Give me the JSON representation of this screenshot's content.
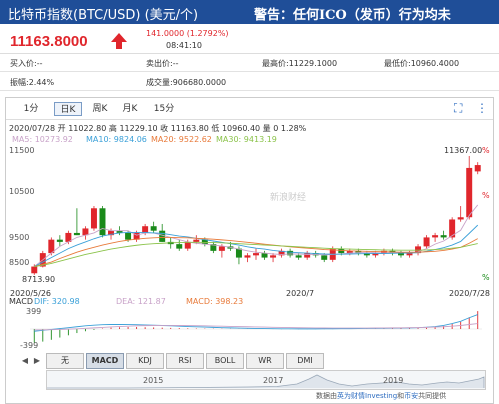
{
  "header": {
    "title": "比特币指数(BTC/USD) (美元/个)",
    "warning": "警告：任何ICO（发币）行为均未"
  },
  "quote": {
    "price": "11163.8000",
    "change": "141.0000 (1.2792%)",
    "time": "08:41:10"
  },
  "stats": {
    "bid": "买入价:--",
    "ask": "卖出价:--",
    "high": "最高价:11229.1000",
    "low": "最低价:10960.4000",
    "amplitude": "振幅:2.44%",
    "volume": "成交量:906680.0000"
  },
  "tabs": [
    "1分",
    "日K",
    "周K",
    "月K",
    "15分"
  ],
  "active_tab": "日K",
  "ohlc_line": "2020/07/28 开 11022.80 高 11229.10 收 11163.80 低 10960.40 量 0 1.28%",
  "ma": {
    "ma5": "MA5: 10273.92",
    "ma10": "MA10: 9824.06",
    "ma20": "MA20: 9522.62",
    "ma30": "MA30: 9413.19"
  },
  "colors": {
    "up": "#e0262c",
    "down": "#1a8a1a",
    "ma5": "#c8a2c8",
    "ma10": "#3aa0d8",
    "ma20": "#e87a3a",
    "ma30": "#8bc34a",
    "header": "#1f4e98"
  },
  "axis": {
    "y_ticks": [
      "11500",
      "10500",
      "9500",
      "8500"
    ],
    "x_ticks": [
      "2020/5/26",
      "2020/7",
      "2020/7/28"
    ],
    "max_label": "11367.00",
    "min_label": "8713.90",
    "pct_high": "%",
    "pct_mid": "%",
    "pct_low": "%",
    "watermark": "新浪财经"
  },
  "macd": {
    "label": "MACD",
    "dif": "DIF: 320.98",
    "dea": "DEA: 121.87",
    "macd": "MACD: 398.23",
    "y_top": "399",
    "y_bottom": "-399"
  },
  "indicators": [
    "无",
    "MACD",
    "KDJ",
    "RSI",
    "BOLL",
    "WR",
    "DMI"
  ],
  "active_indicator": "MACD",
  "timeline_years": [
    "2015",
    "2017",
    "2019"
  ],
  "footer": {
    "prefix": "数据由",
    "provider": "英为财情Investing",
    "middle": "和",
    "provider2": "币安",
    "suffix": "共同提供"
  },
  "chart_data": {
    "type": "candlestick",
    "x_range": [
      "2020/5/26",
      "2020/7/28"
    ],
    "ylim": [
      8500,
      11500
    ],
    "candles": [
      {
        "o": 8750,
        "h": 8950,
        "l": 8714,
        "c": 8900
      },
      {
        "o": 8900,
        "h": 9250,
        "l": 8880,
        "c": 9200
      },
      {
        "o": 9200,
        "h": 9550,
        "l": 9150,
        "c": 9500
      },
      {
        "o": 9500,
        "h": 9600,
        "l": 9350,
        "c": 9450
      },
      {
        "o": 9450,
        "h": 9700,
        "l": 9400,
        "c": 9650
      },
      {
        "o": 9650,
        "h": 10200,
        "l": 9600,
        "c": 9600
      },
      {
        "o": 9600,
        "h": 9800,
        "l": 9500,
        "c": 9750
      },
      {
        "o": 9750,
        "h": 10250,
        "l": 9700,
        "c": 10200
      },
      {
        "o": 10200,
        "h": 10250,
        "l": 9550,
        "c": 9600
      },
      {
        "o": 9600,
        "h": 9750,
        "l": 9500,
        "c": 9700
      },
      {
        "o": 9700,
        "h": 9800,
        "l": 9600,
        "c": 9650
      },
      {
        "o": 9650,
        "h": 9700,
        "l": 9450,
        "c": 9500
      },
      {
        "o": 9500,
        "h": 9700,
        "l": 9450,
        "c": 9650
      },
      {
        "o": 9650,
        "h": 9850,
        "l": 9600,
        "c": 9800
      },
      {
        "o": 9800,
        "h": 9900,
        "l": 9650,
        "c": 9700
      },
      {
        "o": 9700,
        "h": 9850,
        "l": 9450,
        "c": 9450
      },
      {
        "o": 9450,
        "h": 9550,
        "l": 9300,
        "c": 9400
      },
      {
        "o": 9400,
        "h": 9500,
        "l": 9250,
        "c": 9300
      },
      {
        "o": 9300,
        "h": 9500,
        "l": 9250,
        "c": 9450
      },
      {
        "o": 9450,
        "h": 9600,
        "l": 9400,
        "c": 9500
      },
      {
        "o": 9500,
        "h": 9550,
        "l": 9350,
        "c": 9400
      },
      {
        "o": 9400,
        "h": 9450,
        "l": 9200,
        "c": 9250
      },
      {
        "o": 9250,
        "h": 9400,
        "l": 9100,
        "c": 9350
      },
      {
        "o": 9350,
        "h": 9450,
        "l": 9250,
        "c": 9300
      },
      {
        "o": 9300,
        "h": 9350,
        "l": 8950,
        "c": 9100
      },
      {
        "o": 9100,
        "h": 9200,
        "l": 9000,
        "c": 9150
      },
      {
        "o": 9150,
        "h": 9300,
        "l": 9050,
        "c": 9200
      },
      {
        "o": 9200,
        "h": 9250,
        "l": 9050,
        "c": 9100
      },
      {
        "o": 9100,
        "h": 9200,
        "l": 9000,
        "c": 9150
      },
      {
        "o": 9150,
        "h": 9300,
        "l": 9100,
        "c": 9250
      },
      {
        "o": 9250,
        "h": 9300,
        "l": 9100,
        "c": 9150
      },
      {
        "o": 9150,
        "h": 9200,
        "l": 9050,
        "c": 9100
      },
      {
        "o": 9100,
        "h": 9250,
        "l": 9050,
        "c": 9200
      },
      {
        "o": 9200,
        "h": 9250,
        "l": 9100,
        "c": 9150
      },
      {
        "o": 9150,
        "h": 9200,
        "l": 9000,
        "c": 9050
      },
      {
        "o": 9050,
        "h": 9350,
        "l": 9000,
        "c": 9300
      },
      {
        "o": 9300,
        "h": 9350,
        "l": 9150,
        "c": 9200
      },
      {
        "o": 9200,
        "h": 9300,
        "l": 9150,
        "c": 9250
      },
      {
        "o": 9250,
        "h": 9300,
        "l": 9150,
        "c": 9200
      },
      {
        "o": 9200,
        "h": 9250,
        "l": 9100,
        "c": 9150
      },
      {
        "o": 9150,
        "h": 9250,
        "l": 9100,
        "c": 9200
      },
      {
        "o": 9200,
        "h": 9300,
        "l": 9150,
        "c": 9250
      },
      {
        "o": 9250,
        "h": 9300,
        "l": 9150,
        "c": 9200
      },
      {
        "o": 9200,
        "h": 9250,
        "l": 9100,
        "c": 9150
      },
      {
        "o": 9150,
        "h": 9250,
        "l": 9100,
        "c": 9200
      },
      {
        "o": 9200,
        "h": 9400,
        "l": 9150,
        "c": 9350
      },
      {
        "o": 9350,
        "h": 9600,
        "l": 9300,
        "c": 9550
      },
      {
        "o": 9550,
        "h": 9650,
        "l": 9450,
        "c": 9600
      },
      {
        "o": 9600,
        "h": 9700,
        "l": 9500,
        "c": 9550
      },
      {
        "o": 9550,
        "h": 10000,
        "l": 9500,
        "c": 9950
      },
      {
        "o": 9950,
        "h": 10250,
        "l": 9900,
        "c": 10000
      },
      {
        "o": 10000,
        "h": 11367,
        "l": 9950,
        "c": 11100
      },
      {
        "o": 11022.8,
        "h": 11229.1,
        "l": 10960.4,
        "c": 11163.8
      }
    ],
    "ma": {
      "MA5": [
        8900,
        9050,
        9200,
        9350,
        9450,
        9550,
        9600,
        9650,
        9750,
        9700,
        9700,
        9700,
        9600,
        9650,
        9650,
        9600,
        9550,
        9500,
        9450,
        9420,
        9400,
        9380,
        9360,
        9330,
        9290,
        9250,
        9220,
        9200,
        9180,
        9170,
        9180,
        9180,
        9170,
        9170,
        9160,
        9170,
        9180,
        9200,
        9210,
        9220,
        9210,
        9200,
        9210,
        9210,
        9200,
        9230,
        9300,
        9400,
        9470,
        9590,
        9710,
        10040,
        10274
      ],
      "MA10": [
        8900,
        9000,
        9100,
        9200,
        9300,
        9380,
        9450,
        9520,
        9580,
        9620,
        9650,
        9660,
        9660,
        9660,
        9650,
        9640,
        9610,
        9580,
        9560,
        9530,
        9500,
        9470,
        9440,
        9410,
        9380,
        9340,
        9310,
        9290,
        9260,
        9240,
        9220,
        9210,
        9200,
        9190,
        9180,
        9175,
        9175,
        9180,
        9185,
        9190,
        9190,
        9190,
        9195,
        9200,
        9200,
        9210,
        9240,
        9280,
        9320,
        9380,
        9460,
        9640,
        9824
      ],
      "MA20": [
        8900,
        8950,
        9000,
        9080,
        9150,
        9220,
        9280,
        9330,
        9380,
        9420,
        9460,
        9490,
        9510,
        9530,
        9540,
        9550,
        9550,
        9545,
        9540,
        9530,
        9520,
        9510,
        9495,
        9480,
        9460,
        9440,
        9420,
        9400,
        9380,
        9360,
        9340,
        9325,
        9310,
        9295,
        9280,
        9270,
        9260,
        9250,
        9245,
        9240,
        9235,
        9230,
        9225,
        9220,
        9220,
        9220,
        9230,
        9240,
        9260,
        9290,
        9330,
        9420,
        9523
      ],
      "MA30": [
        8900,
        8930,
        8970,
        9020,
        9070,
        9120,
        9170,
        9210,
        9250,
        9290,
        9320,
        9350,
        9375,
        9395,
        9410,
        9420,
        9430,
        9435,
        9440,
        9440,
        9438,
        9435,
        9430,
        9420,
        9410,
        9400,
        9390,
        9380,
        9370,
        9360,
        9350,
        9340,
        9330,
        9320,
        9310,
        9300,
        9295,
        9290,
        9285,
        9280,
        9275,
        9270,
        9268,
        9265,
        9265,
        9265,
        9270,
        9280,
        9290,
        9310,
        9330,
        9370,
        9413
      ]
    },
    "macd_hist": [
      -300,
      -280,
      -240,
      -190,
      -140,
      -90,
      -50,
      -20,
      10,
      30,
      40,
      45,
      45,
      40,
      35,
      30,
      25,
      20,
      15,
      12,
      10,
      8,
      6,
      4,
      3,
      2,
      1,
      0,
      -1,
      -2,
      -2,
      -3,
      -3,
      -2,
      -2,
      -1,
      0,
      2,
      4,
      6,
      8,
      10,
      12,
      14,
      16,
      20,
      30,
      45,
      70,
      110,
      160,
      260,
      398
    ],
    "dif": [
      -50,
      -30,
      -10,
      10,
      30,
      50,
      70,
      85,
      95,
      100,
      100,
      98,
      95,
      90,
      85,
      78,
      70,
      62,
      55,
      48,
      42,
      36,
      30,
      25,
      20,
      16,
      12,
      9,
      7,
      5,
      4,
      3,
      3,
      3,
      4,
      5,
      6,
      8,
      10,
      12,
      14,
      16,
      18,
      21,
      25,
      30,
      40,
      55,
      80,
      120,
      170,
      250,
      321
    ],
    "dea": [
      -20,
      -18,
      -15,
      -10,
      -3,
      5,
      15,
      25,
      35,
      45,
      55,
      63,
      70,
      75,
      78,
      80,
      80,
      78,
      76,
      73,
      70,
      66,
      62,
      58,
      54,
      50,
      46,
      42,
      38,
      34,
      31,
      28,
      26,
      24,
      22,
      21,
      20,
      20,
      20,
      21,
      22,
      23,
      25,
      27,
      29,
      32,
      36,
      42,
      50,
      62,
      78,
      100,
      122
    ]
  }
}
